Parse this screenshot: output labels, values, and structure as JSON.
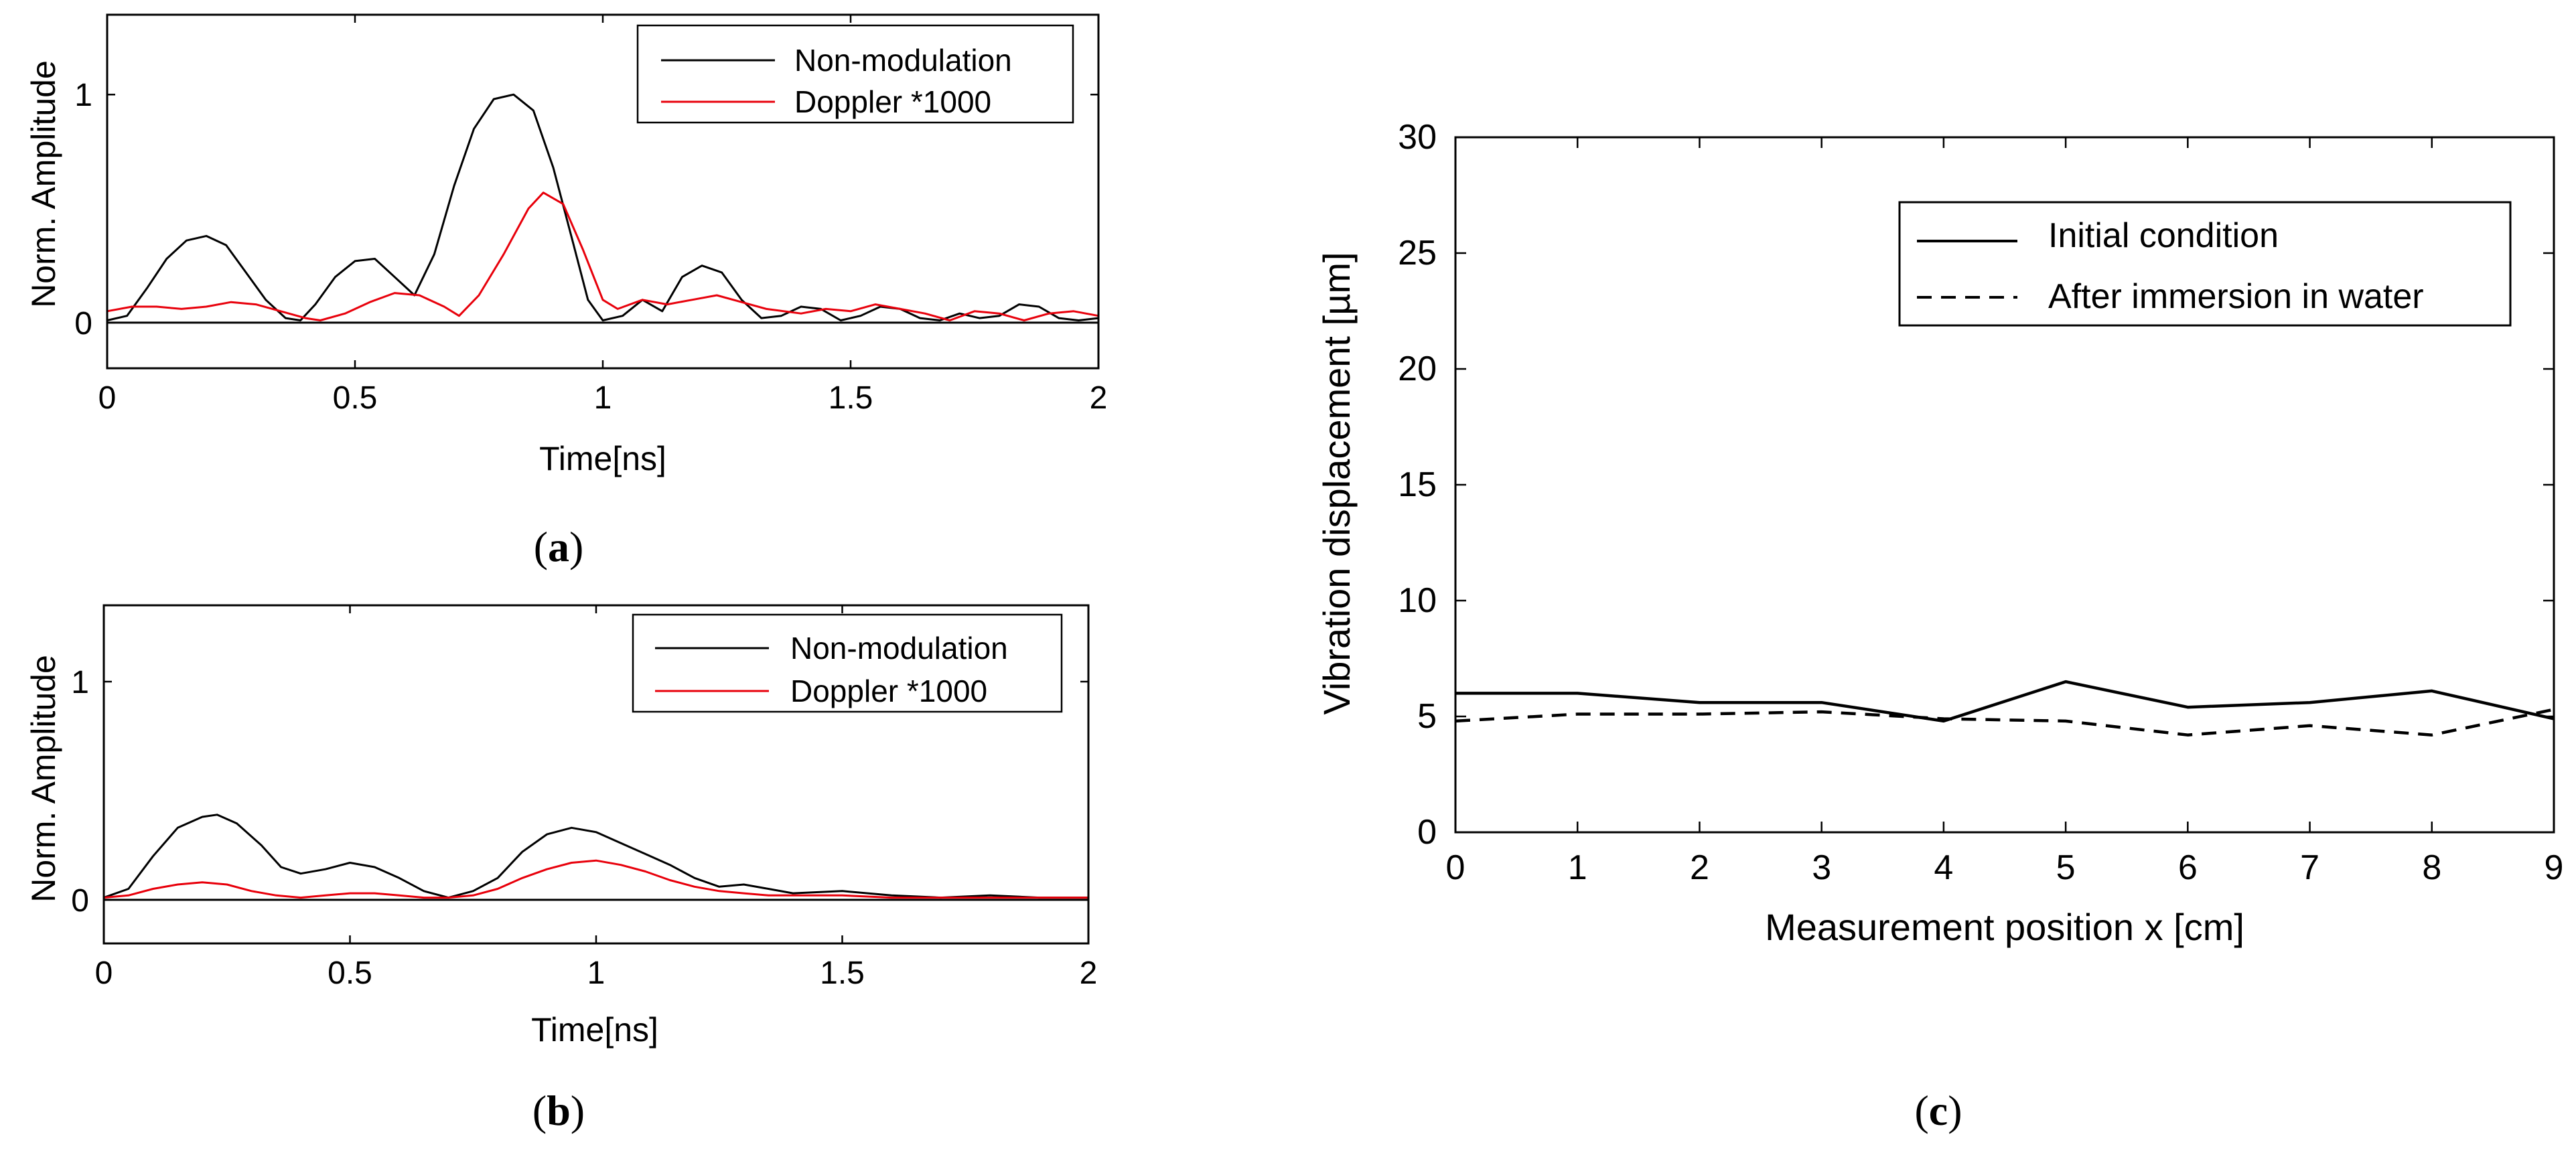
{
  "chart_data": [
    {
      "type": "line",
      "panel": "a",
      "caption": {
        "open": "(",
        "letter": "a",
        "close": ")"
      },
      "xlabel": "Time[ns]",
      "ylabel": "Norm. Amplitude",
      "xlim": [
        0,
        2
      ],
      "ylim": [
        -0.2,
        1.35
      ],
      "x_ticks": [
        0,
        0.5,
        1,
        1.5,
        2
      ],
      "x_tick_labels": [
        "0",
        "0.5",
        "1",
        "1.5",
        "2"
      ],
      "y_ticks": [
        0,
        1
      ],
      "y_tick_labels": [
        "0",
        "1"
      ],
      "legend": [
        "Non-modulation",
        "Doppler *1000"
      ],
      "series": [
        {
          "name": "Non-modulation",
          "color": "#000000",
          "x": [
            0,
            0.04,
            0.08,
            0.12,
            0.16,
            0.2,
            0.24,
            0.28,
            0.32,
            0.36,
            0.39,
            0.42,
            0.46,
            0.5,
            0.54,
            0.58,
            0.62,
            0.66,
            0.7,
            0.74,
            0.78,
            0.82,
            0.86,
            0.9,
            0.94,
            0.97,
            1.0,
            1.04,
            1.08,
            1.12,
            1.16,
            1.2,
            1.24,
            1.28,
            1.32,
            1.36,
            1.4,
            1.44,
            1.48,
            1.52,
            1.56,
            1.6,
            1.64,
            1.68,
            1.72,
            1.76,
            1.8,
            1.84,
            1.88,
            1.92,
            1.96,
            2.0
          ],
          "y": [
            0.01,
            0.03,
            0.15,
            0.28,
            0.36,
            0.38,
            0.34,
            0.22,
            0.1,
            0.02,
            0.01,
            0.08,
            0.2,
            0.27,
            0.28,
            0.2,
            0.12,
            0.3,
            0.6,
            0.85,
            0.98,
            1.0,
            0.93,
            0.68,
            0.35,
            0.1,
            0.01,
            0.03,
            0.1,
            0.05,
            0.2,
            0.25,
            0.22,
            0.1,
            0.02,
            0.03,
            0.07,
            0.06,
            0.01,
            0.03,
            0.07,
            0.06,
            0.02,
            0.01,
            0.04,
            0.02,
            0.03,
            0.08,
            0.07,
            0.02,
            0.01,
            0.02
          ]
        },
        {
          "name": "Doppler *1000",
          "color": "#e8000b",
          "x": [
            0,
            0.05,
            0.1,
            0.15,
            0.2,
            0.25,
            0.3,
            0.35,
            0.4,
            0.43,
            0.48,
            0.53,
            0.58,
            0.63,
            0.68,
            0.71,
            0.75,
            0.8,
            0.85,
            0.88,
            0.92,
            0.96,
            1.0,
            1.03,
            1.08,
            1.13,
            1.18,
            1.23,
            1.28,
            1.33,
            1.4,
            1.45,
            1.5,
            1.55,
            1.6,
            1.65,
            1.7,
            1.75,
            1.8,
            1.85,
            1.9,
            1.95,
            2.0
          ],
          "y": [
            0.05,
            0.07,
            0.07,
            0.06,
            0.07,
            0.09,
            0.08,
            0.05,
            0.02,
            0.01,
            0.04,
            0.09,
            0.13,
            0.12,
            0.07,
            0.03,
            0.12,
            0.3,
            0.5,
            0.57,
            0.52,
            0.32,
            0.1,
            0.06,
            0.1,
            0.08,
            0.1,
            0.12,
            0.09,
            0.06,
            0.04,
            0.06,
            0.05,
            0.08,
            0.06,
            0.04,
            0.01,
            0.05,
            0.04,
            0.01,
            0.04,
            0.05,
            0.03
          ]
        }
      ]
    },
    {
      "type": "line",
      "panel": "b",
      "caption": {
        "open": "(",
        "letter": "b",
        "close": ")"
      },
      "xlabel": "Time[ns]",
      "ylabel": "Norm. Amplitude",
      "xlim": [
        0,
        2
      ],
      "ylim": [
        -0.2,
        1.35
      ],
      "x_ticks": [
        0,
        0.5,
        1,
        1.5,
        2
      ],
      "x_tick_labels": [
        "0",
        "0.5",
        "1",
        "1.5",
        "2"
      ],
      "y_ticks": [
        0,
        1
      ],
      "y_tick_labels": [
        "0",
        "1"
      ],
      "legend": [
        "Non-modulation",
        "Doppler *1000"
      ],
      "series": [
        {
          "name": "Non-modulation",
          "color": "#000000",
          "x": [
            0,
            0.05,
            0.1,
            0.15,
            0.2,
            0.23,
            0.27,
            0.32,
            0.36,
            0.4,
            0.45,
            0.5,
            0.55,
            0.6,
            0.65,
            0.7,
            0.75,
            0.8,
            0.85,
            0.9,
            0.95,
            1.0,
            1.05,
            1.1,
            1.15,
            1.2,
            1.25,
            1.3,
            1.35,
            1.4,
            1.5,
            1.6,
            1.7,
            1.8,
            1.9,
            2.0
          ],
          "y": [
            0.01,
            0.05,
            0.2,
            0.33,
            0.38,
            0.39,
            0.35,
            0.25,
            0.15,
            0.12,
            0.14,
            0.17,
            0.15,
            0.1,
            0.04,
            0.01,
            0.04,
            0.1,
            0.22,
            0.3,
            0.33,
            0.31,
            0.26,
            0.21,
            0.16,
            0.1,
            0.06,
            0.07,
            0.05,
            0.03,
            0.04,
            0.02,
            0.01,
            0.02,
            0.01,
            0.01
          ]
        },
        {
          "name": "Doppler *1000",
          "color": "#e8000b",
          "x": [
            0,
            0.05,
            0.1,
            0.15,
            0.2,
            0.25,
            0.3,
            0.35,
            0.4,
            0.45,
            0.5,
            0.55,
            0.6,
            0.65,
            0.7,
            0.75,
            0.8,
            0.85,
            0.9,
            0.95,
            1.0,
            1.05,
            1.1,
            1.15,
            1.2,
            1.25,
            1.3,
            1.35,
            1.4,
            1.5,
            1.6,
            1.7,
            1.8,
            1.9,
            2.0
          ],
          "y": [
            0.01,
            0.02,
            0.05,
            0.07,
            0.08,
            0.07,
            0.04,
            0.02,
            0.01,
            0.02,
            0.03,
            0.03,
            0.02,
            0.01,
            0.01,
            0.02,
            0.05,
            0.1,
            0.14,
            0.17,
            0.18,
            0.16,
            0.13,
            0.09,
            0.06,
            0.04,
            0.03,
            0.02,
            0.02,
            0.02,
            0.01,
            0.01,
            0.01,
            0.01,
            0.01
          ]
        }
      ]
    },
    {
      "type": "line",
      "panel": "c",
      "caption": {
        "open": "(",
        "letter": "c",
        "close": ")"
      },
      "xlabel": "Measurement position x [cm]",
      "ylabel": "Vibration displacement [µm]",
      "xlim": [
        0,
        9
      ],
      "ylim": [
        0,
        30
      ],
      "x_ticks": [
        0,
        1,
        2,
        3,
        4,
        5,
        6,
        7,
        8,
        9
      ],
      "x_tick_labels": [
        "0",
        "1",
        "2",
        "3",
        "4",
        "5",
        "6",
        "7",
        "8",
        "9"
      ],
      "y_ticks": [
        0,
        5,
        10,
        15,
        20,
        25,
        30
      ],
      "y_tick_labels": [
        "0",
        "5",
        "10",
        "15",
        "20",
        "25",
        "30"
      ],
      "legend": [
        "Initial condition",
        "After immersion in water"
      ],
      "series": [
        {
          "name": "Initial condition",
          "color": "#000000",
          "style": "solid",
          "x": [
            0,
            1,
            2,
            3,
            4,
            5,
            6,
            7,
            8,
            9
          ],
          "y": [
            6.0,
            6.0,
            5.6,
            5.6,
            4.8,
            6.5,
            5.4,
            5.6,
            6.1,
            4.9
          ]
        },
        {
          "name": "After immersion in water",
          "color": "#000000",
          "style": "dashed",
          "x": [
            0,
            1,
            2,
            3,
            4,
            5,
            6,
            7,
            8,
            9
          ],
          "y": [
            4.8,
            5.1,
            5.1,
            5.2,
            4.9,
            4.8,
            4.2,
            4.6,
            4.2,
            5.3
          ]
        }
      ]
    }
  ]
}
